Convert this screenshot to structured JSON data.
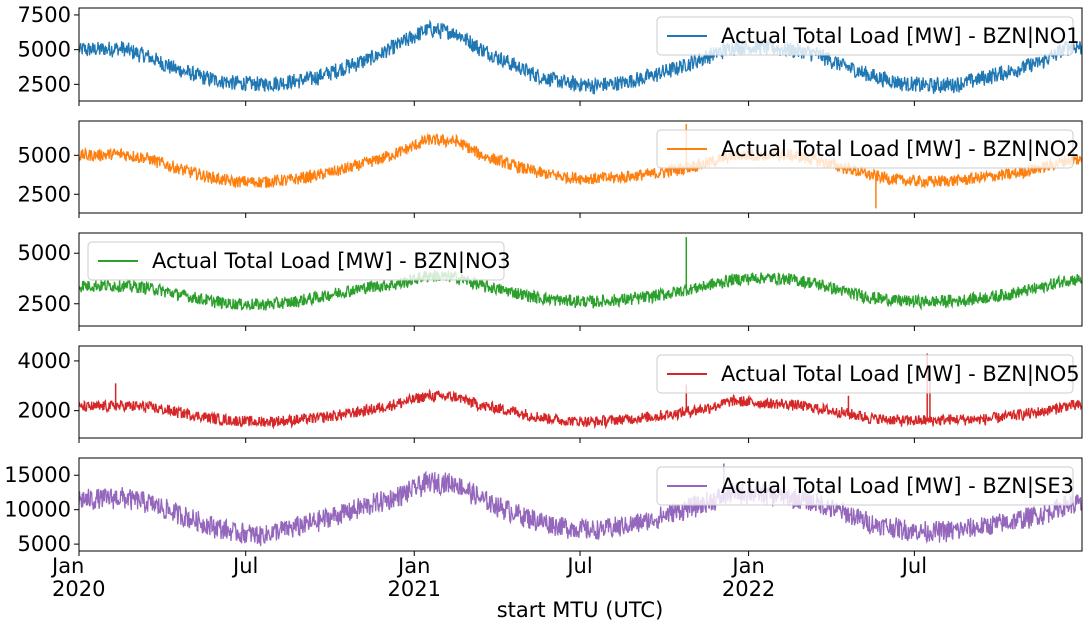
{
  "chart_data": {
    "type": "line",
    "xlabel": "start MTU (UTC)",
    "x_range": [
      "2020-01-01",
      "2022-12-31"
    ],
    "x_ticks": [
      {
        "date": "2020-01-01",
        "label": "Jan",
        "sub": "2020"
      },
      {
        "date": "2020-07-01",
        "label": "Jul",
        "sub": ""
      },
      {
        "date": "2021-01-01",
        "label": "Jan",
        "sub": "2021"
      },
      {
        "date": "2021-07-01",
        "label": "Jul",
        "sub": ""
      },
      {
        "date": "2022-01-01",
        "label": "Jan",
        "sub": "2022"
      },
      {
        "date": "2022-07-01",
        "label": "Jul",
        "sub": ""
      }
    ],
    "panels": [
      {
        "name": "Actual Total Load [MW] - BZN|NO1",
        "color": "#1f77b4",
        "legend": "top-right",
        "ylim": [
          1300,
          8000
        ],
        "yticks": [
          2500,
          5000,
          7500
        ],
        "ytick_labels": [
          "2500",
          "5000",
          "7500"
        ],
        "monthly": [
          {
            "date": "2020-01",
            "value": 5000
          },
          {
            "date": "2020-02",
            "value": 5100
          },
          {
            "date": "2020-03",
            "value": 4500
          },
          {
            "date": "2020-04",
            "value": 3600
          },
          {
            "date": "2020-05",
            "value": 3000
          },
          {
            "date": "2020-06",
            "value": 2600
          },
          {
            "date": "2020-07",
            "value": 2500
          },
          {
            "date": "2020-08",
            "value": 2650
          },
          {
            "date": "2020-09",
            "value": 3000
          },
          {
            "date": "2020-10",
            "value": 3700
          },
          {
            "date": "2020-11",
            "value": 4400
          },
          {
            "date": "2020-12",
            "value": 5400
          },
          {
            "date": "2021-01",
            "value": 6500
          },
          {
            "date": "2021-02",
            "value": 6200
          },
          {
            "date": "2021-03",
            "value": 5000
          },
          {
            "date": "2021-04",
            "value": 4000
          },
          {
            "date": "2021-05",
            "value": 3100
          },
          {
            "date": "2021-06",
            "value": 2600
          },
          {
            "date": "2021-07",
            "value": 2400
          },
          {
            "date": "2021-08",
            "value": 2600
          },
          {
            "date": "2021-09",
            "value": 3100
          },
          {
            "date": "2021-10",
            "value": 3700
          },
          {
            "date": "2021-11",
            "value": 4500
          },
          {
            "date": "2021-12",
            "value": 5200
          },
          {
            "date": "2022-01",
            "value": 5200
          },
          {
            "date": "2022-02",
            "value": 5000
          },
          {
            "date": "2022-03",
            "value": 4700
          },
          {
            "date": "2022-04",
            "value": 3800
          },
          {
            "date": "2022-05",
            "value": 3100
          },
          {
            "date": "2022-06",
            "value": 2600
          },
          {
            "date": "2022-07",
            "value": 2400
          },
          {
            "date": "2022-08",
            "value": 2500
          },
          {
            "date": "2022-09",
            "value": 3000
          },
          {
            "date": "2022-10",
            "value": 3500
          },
          {
            "date": "2022-11",
            "value": 4100
          },
          {
            "date": "2022-12",
            "value": 5200
          }
        ],
        "noise": 550,
        "spikes": []
      },
      {
        "name": "Actual Total Load [MW] - BZN|NO2",
        "color": "#ff7f0e",
        "legend": "top-right",
        "ylim": [
          1300,
          7200
        ],
        "yticks": [
          2500,
          5000
        ],
        "ytick_labels": [
          "2500",
          "5000"
        ],
        "monthly": [
          {
            "date": "2020-01",
            "value": 5000
          },
          {
            "date": "2020-02",
            "value": 5100
          },
          {
            "date": "2020-03",
            "value": 4800
          },
          {
            "date": "2020-04",
            "value": 4200
          },
          {
            "date": "2020-05",
            "value": 3700
          },
          {
            "date": "2020-06",
            "value": 3300
          },
          {
            "date": "2020-07",
            "value": 3300
          },
          {
            "date": "2020-08",
            "value": 3400
          },
          {
            "date": "2020-09",
            "value": 3700
          },
          {
            "date": "2020-10",
            "value": 4100
          },
          {
            "date": "2020-11",
            "value": 4600
          },
          {
            "date": "2020-12",
            "value": 5200
          },
          {
            "date": "2021-01",
            "value": 6000
          },
          {
            "date": "2021-02",
            "value": 5900
          },
          {
            "date": "2021-03",
            "value": 5000
          },
          {
            "date": "2021-04",
            "value": 4400
          },
          {
            "date": "2021-05",
            "value": 3900
          },
          {
            "date": "2021-06",
            "value": 3600
          },
          {
            "date": "2021-07",
            "value": 3500
          },
          {
            "date": "2021-08",
            "value": 3600
          },
          {
            "date": "2021-09",
            "value": 3800
          },
          {
            "date": "2021-10",
            "value": 4100
          },
          {
            "date": "2021-11",
            "value": 4500
          },
          {
            "date": "2021-12",
            "value": 5000
          },
          {
            "date": "2022-01",
            "value": 5000
          },
          {
            "date": "2022-02",
            "value": 5000
          },
          {
            "date": "2022-03",
            "value": 4700
          },
          {
            "date": "2022-04",
            "value": 4200
          },
          {
            "date": "2022-05",
            "value": 3700
          },
          {
            "date": "2022-06",
            "value": 3400
          },
          {
            "date": "2022-07",
            "value": 3300
          },
          {
            "date": "2022-08",
            "value": 3400
          },
          {
            "date": "2022-09",
            "value": 3600
          },
          {
            "date": "2022-10",
            "value": 3800
          },
          {
            "date": "2022-11",
            "value": 4200
          },
          {
            "date": "2022-12",
            "value": 4700
          }
        ],
        "noise": 380,
        "spikes": [
          {
            "date": "2021-10-25",
            "value": 7000
          },
          {
            "date": "2022-05-20",
            "value": 1600
          }
        ]
      },
      {
        "name": "Actual Total Load [MW] - BZN|NO3",
        "color": "#2ca02c",
        "legend": "top-left",
        "ylim": [
          1400,
          6000
        ],
        "yticks": [
          2500,
          5000
        ],
        "ytick_labels": [
          "2500",
          "5000"
        ],
        "monthly": [
          {
            "date": "2020-01",
            "value": 3400
          },
          {
            "date": "2020-02",
            "value": 3400
          },
          {
            "date": "2020-03",
            "value": 3300
          },
          {
            "date": "2020-04",
            "value": 3000
          },
          {
            "date": "2020-05",
            "value": 2700
          },
          {
            "date": "2020-06",
            "value": 2500
          },
          {
            "date": "2020-07",
            "value": 2450
          },
          {
            "date": "2020-08",
            "value": 2550
          },
          {
            "date": "2020-09",
            "value": 2800
          },
          {
            "date": "2020-10",
            "value": 3100
          },
          {
            "date": "2020-11",
            "value": 3350
          },
          {
            "date": "2020-12",
            "value": 3500
          },
          {
            "date": "2021-01",
            "value": 3900
          },
          {
            "date": "2021-02",
            "value": 3800
          },
          {
            "date": "2021-03",
            "value": 3400
          },
          {
            "date": "2021-04",
            "value": 3100
          },
          {
            "date": "2021-05",
            "value": 2800
          },
          {
            "date": "2021-06",
            "value": 2650
          },
          {
            "date": "2021-07",
            "value": 2600
          },
          {
            "date": "2021-08",
            "value": 2700
          },
          {
            "date": "2021-09",
            "value": 2850
          },
          {
            "date": "2021-10",
            "value": 3100
          },
          {
            "date": "2021-11",
            "value": 3400
          },
          {
            "date": "2021-12",
            "value": 3700
          },
          {
            "date": "2022-01",
            "value": 3800
          },
          {
            "date": "2022-02",
            "value": 3700
          },
          {
            "date": "2022-03",
            "value": 3500
          },
          {
            "date": "2022-04",
            "value": 3100
          },
          {
            "date": "2022-05",
            "value": 2800
          },
          {
            "date": "2022-06",
            "value": 2650
          },
          {
            "date": "2022-07",
            "value": 2600
          },
          {
            "date": "2022-08",
            "value": 2650
          },
          {
            "date": "2022-09",
            "value": 2800
          },
          {
            "date": "2022-10",
            "value": 3000
          },
          {
            "date": "2022-11",
            "value": 3300
          },
          {
            "date": "2022-12",
            "value": 3700
          }
        ],
        "noise": 300,
        "spikes": [
          {
            "date": "2021-10-25",
            "value": 5800
          }
        ]
      },
      {
        "name": "Actual Total Load [MW] - BZN|NO5",
        "color": "#d62728",
        "legend": "top-right",
        "ylim": [
          900,
          4600
        ],
        "yticks": [
          2000,
          4000
        ],
        "ytick_labels": [
          "2000",
          "4000"
        ],
        "monthly": [
          {
            "date": "2020-01",
            "value": 2150
          },
          {
            "date": "2020-02",
            "value": 2200
          },
          {
            "date": "2020-03",
            "value": 2150
          },
          {
            "date": "2020-04",
            "value": 1950
          },
          {
            "date": "2020-05",
            "value": 1750
          },
          {
            "date": "2020-06",
            "value": 1600
          },
          {
            "date": "2020-07",
            "value": 1550
          },
          {
            "date": "2020-08",
            "value": 1600
          },
          {
            "date": "2020-09",
            "value": 1700
          },
          {
            "date": "2020-10",
            "value": 1850
          },
          {
            "date": "2020-11",
            "value": 2050
          },
          {
            "date": "2020-12",
            "value": 2300
          },
          {
            "date": "2021-01",
            "value": 2600
          },
          {
            "date": "2021-02",
            "value": 2550
          },
          {
            "date": "2021-03",
            "value": 2200
          },
          {
            "date": "2021-04",
            "value": 2000
          },
          {
            "date": "2021-05",
            "value": 1750
          },
          {
            "date": "2021-06",
            "value": 1600
          },
          {
            "date": "2021-07",
            "value": 1550
          },
          {
            "date": "2021-08",
            "value": 1650
          },
          {
            "date": "2021-09",
            "value": 1750
          },
          {
            "date": "2021-10",
            "value": 1900
          },
          {
            "date": "2021-11",
            "value": 2100
          },
          {
            "date": "2021-12",
            "value": 2400
          },
          {
            "date": "2022-01",
            "value": 2300
          },
          {
            "date": "2022-02",
            "value": 2250
          },
          {
            "date": "2022-03",
            "value": 2100
          },
          {
            "date": "2022-04",
            "value": 1900
          },
          {
            "date": "2022-05",
            "value": 1700
          },
          {
            "date": "2022-06",
            "value": 1600
          },
          {
            "date": "2022-07",
            "value": 1600
          },
          {
            "date": "2022-08",
            "value": 1650
          },
          {
            "date": "2022-09",
            "value": 1650
          },
          {
            "date": "2022-10",
            "value": 1800
          },
          {
            "date": "2022-11",
            "value": 1950
          },
          {
            "date": "2022-12",
            "value": 2200
          }
        ],
        "noise": 220,
        "spikes": [
          {
            "date": "2020-02-10",
            "value": 3100
          },
          {
            "date": "2021-10-25",
            "value": 3050
          },
          {
            "date": "2022-04-20",
            "value": 2600
          },
          {
            "date": "2022-07-15",
            "value": 4300
          },
          {
            "date": "2022-07-18",
            "value": 3800
          }
        ]
      },
      {
        "name": "Actual Total Load [MW] - BZN|SE3",
        "color": "#9467bd",
        "legend": "top-right",
        "ylim": [
          4000,
          17500
        ],
        "yticks": [
          5000,
          10000,
          15000
        ],
        "ytick_labels": [
          "5000",
          "10000",
          "15000"
        ],
        "monthly": [
          {
            "date": "2020-01",
            "value": 11500
          },
          {
            "date": "2020-02",
            "value": 11800
          },
          {
            "date": "2020-03",
            "value": 11000
          },
          {
            "date": "2020-04",
            "value": 9500
          },
          {
            "date": "2020-05",
            "value": 8000
          },
          {
            "date": "2020-06",
            "value": 6800
          },
          {
            "date": "2020-07",
            "value": 6300
          },
          {
            "date": "2020-08",
            "value": 7200
          },
          {
            "date": "2020-09",
            "value": 8300
          },
          {
            "date": "2020-10",
            "value": 9500
          },
          {
            "date": "2020-11",
            "value": 10800
          },
          {
            "date": "2020-12",
            "value": 12000
          },
          {
            "date": "2021-01",
            "value": 14000
          },
          {
            "date": "2021-02",
            "value": 13800
          },
          {
            "date": "2021-03",
            "value": 11500
          },
          {
            "date": "2021-04",
            "value": 9800
          },
          {
            "date": "2021-05",
            "value": 8400
          },
          {
            "date": "2021-06",
            "value": 7500
          },
          {
            "date": "2021-07",
            "value": 7000
          },
          {
            "date": "2021-08",
            "value": 7600
          },
          {
            "date": "2021-09",
            "value": 8500
          },
          {
            "date": "2021-10",
            "value": 9800
          },
          {
            "date": "2021-11",
            "value": 11000
          },
          {
            "date": "2021-12",
            "value": 12500
          },
          {
            "date": "2022-01",
            "value": 12300
          },
          {
            "date": "2022-02",
            "value": 11800
          },
          {
            "date": "2022-03",
            "value": 11000
          },
          {
            "date": "2022-04",
            "value": 9500
          },
          {
            "date": "2022-05",
            "value": 8000
          },
          {
            "date": "2022-06",
            "value": 7200
          },
          {
            "date": "2022-07",
            "value": 6800
          },
          {
            "date": "2022-08",
            "value": 7000
          },
          {
            "date": "2022-09",
            "value": 7600
          },
          {
            "date": "2022-10",
            "value": 8300
          },
          {
            "date": "2022-11",
            "value": 9300
          },
          {
            "date": "2022-12",
            "value": 10800
          }
        ],
        "noise": 1500,
        "spikes": [
          {
            "date": "2021-12-05",
            "value": 16700
          }
        ]
      }
    ]
  }
}
